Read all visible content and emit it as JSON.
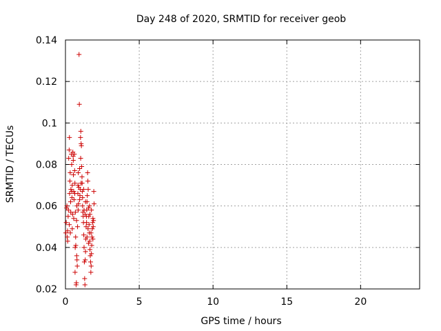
{
  "chart_data": {
    "type": "scatter",
    "title": "Day 248 of 2020, SRMTID for receiver geob",
    "xlabel": "GPS time / hours",
    "ylabel": "SRMTID / TECUs",
    "xlim": [
      0,
      24
    ],
    "ylim": [
      0.02,
      0.14
    ],
    "x_ticks": [
      0,
      5,
      10,
      15,
      20
    ],
    "y_ticks": [
      0.02,
      0.04,
      0.06,
      0.08,
      0.1,
      0.12,
      0.14
    ],
    "x_tick_labels": [
      "0",
      "5",
      "10",
      "15",
      "20"
    ],
    "y_tick_labels": [
      "0.02",
      "0.04",
      "0.06",
      "0.08",
      "0.1",
      "0.12",
      "0.14"
    ],
    "grid": true,
    "marker": "+",
    "color": "#cc0000",
    "series": [
      {
        "name": "SRMTID",
        "points": [
          [
            0.02,
            0.047
          ],
          [
            0.05,
            0.052
          ],
          [
            0.08,
            0.059
          ],
          [
            0.1,
            0.06
          ],
          [
            0.12,
            0.045
          ],
          [
            0.15,
            0.043
          ],
          [
            0.18,
            0.055
          ],
          [
            0.2,
            0.058
          ],
          [
            0.22,
            0.083
          ],
          [
            0.25,
            0.087
          ],
          [
            0.27,
            0.093
          ],
          [
            0.28,
            0.066
          ],
          [
            0.3,
            0.072
          ],
          [
            0.32,
            0.076
          ],
          [
            0.33,
            0.047
          ],
          [
            0.35,
            0.062
          ],
          [
            0.37,
            0.068
          ],
          [
            0.4,
            0.085
          ],
          [
            0.42,
            0.08
          ],
          [
            0.44,
            0.064
          ],
          [
            0.46,
            0.07
          ],
          [
            0.48,
            0.056
          ],
          [
            0.5,
            0.086
          ],
          [
            0.52,
            0.084
          ],
          [
            0.54,
            0.075
          ],
          [
            0.56,
            0.067
          ],
          [
            0.58,
            0.063
          ],
          [
            0.6,
            0.085
          ],
          [
            0.62,
            0.077
          ],
          [
            0.64,
            0.071
          ],
          [
            0.65,
            0.028
          ],
          [
            0.67,
            0.057
          ],
          [
            0.69,
            0.045
          ],
          [
            0.7,
            0.041
          ],
          [
            0.72,
            0.022
          ],
          [
            0.74,
            0.023
          ],
          [
            0.75,
            0.053
          ],
          [
            0.77,
            0.06
          ],
          [
            0.78,
            0.034
          ],
          [
            0.8,
            0.031
          ],
          [
            0.82,
            0.05
          ],
          [
            0.84,
            0.066
          ],
          [
            0.85,
            0.07
          ],
          [
            0.87,
            0.076
          ],
          [
            0.88,
            0.061
          ],
          [
            0.9,
            0.069
          ],
          [
            0.92,
            0.133
          ],
          [
            0.94,
            0.109
          ],
          [
            0.96,
            0.078
          ],
          [
            0.98,
            0.065
          ],
          [
            1.0,
            0.068
          ],
          [
            1.02,
            0.093
          ],
          [
            1.04,
            0.096
          ],
          [
            1.06,
            0.09
          ],
          [
            1.08,
            0.089
          ],
          [
            1.1,
            0.079
          ],
          [
            1.12,
            0.074
          ],
          [
            1.14,
            0.067
          ],
          [
            1.16,
            0.06
          ],
          [
            1.18,
            0.057
          ],
          [
            1.2,
            0.055
          ],
          [
            1.22,
            0.052
          ],
          [
            1.24,
            0.046
          ],
          [
            1.26,
            0.04
          ],
          [
            1.28,
            0.033
          ],
          [
            1.3,
            0.025
          ],
          [
            1.32,
            0.022
          ],
          [
            1.34,
            0.034
          ],
          [
            1.36,
            0.038
          ],
          [
            1.38,
            0.044
          ],
          [
            1.4,
            0.05
          ],
          [
            1.42,
            0.055
          ],
          [
            1.44,
            0.058
          ],
          [
            1.46,
            0.062
          ],
          [
            1.48,
            0.065
          ],
          [
            1.5,
            0.076
          ],
          [
            1.52,
            0.072
          ],
          [
            1.54,
            0.068
          ],
          [
            1.56,
            0.059
          ],
          [
            1.58,
            0.055
          ],
          [
            1.6,
            0.051
          ],
          [
            1.62,
            0.047
          ],
          [
            1.64,
            0.043
          ],
          [
            1.66,
            0.039
          ],
          [
            1.68,
            0.036
          ],
          [
            1.7,
            0.033
          ],
          [
            1.72,
            0.028
          ],
          [
            1.74,
            0.031
          ],
          [
            1.76,
            0.037
          ],
          [
            1.78,
            0.041
          ],
          [
            1.8,
            0.045
          ],
          [
            1.82,
            0.049
          ],
          [
            1.84,
            0.052
          ],
          [
            1.86,
            0.054
          ],
          [
            1.88,
            0.05
          ],
          [
            1.9,
            0.053
          ],
          [
            1.92,
            0.067
          ],
          [
            1.94,
            0.061
          ],
          [
            0.14,
            0.048
          ],
          [
            0.26,
            0.051
          ],
          [
            0.36,
            0.057
          ],
          [
            0.46,
            0.049
          ],
          [
            0.56,
            0.054
          ],
          [
            0.66,
            0.04
          ],
          [
            0.76,
            0.036
          ],
          [
            0.86,
            0.058
          ],
          [
            0.96,
            0.063
          ],
          [
            1.06,
            0.071
          ],
          [
            1.16,
            0.064
          ],
          [
            1.26,
            0.058
          ],
          [
            1.36,
            0.062
          ],
          [
            1.46,
            0.045
          ],
          [
            1.56,
            0.042
          ],
          [
            1.66,
            0.056
          ],
          [
            1.76,
            0.058
          ],
          [
            1.86,
            0.044
          ],
          [
            0.43,
            0.067
          ],
          [
            0.53,
            0.082
          ],
          [
            0.63,
            0.066
          ],
          [
            1.03,
            0.083
          ],
          [
            1.13,
            0.071
          ],
          [
            1.23,
            0.068
          ],
          [
            1.33,
            0.056
          ],
          [
            1.43,
            0.052
          ],
          [
            1.53,
            0.049
          ],
          [
            1.63,
            0.06
          ],
          [
            1.73,
            0.047
          ]
        ]
      }
    ]
  }
}
